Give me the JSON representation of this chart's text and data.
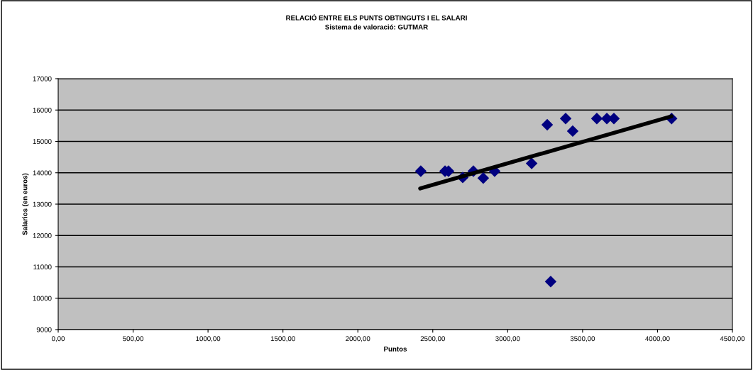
{
  "chart_data": {
    "type": "scatter",
    "title": "RELACIÓ ENTRE ELS PUNTS OBTINGUTS I EL SALARI",
    "subtitle": "Sistema de valoració: GUTMAR",
    "xlabel": "Puntos",
    "ylabel": "Salarios (en euros)",
    "series": [
      {
        "color": "#000080",
        "marker": "diamond",
        "x": [
          2420,
          2582,
          2605,
          2700,
          2771,
          2837,
          2913,
          3160,
          3264,
          3387,
          3434,
          3595,
          3662,
          3709,
          4094,
          3287
        ],
        "values": [
          14050,
          14050,
          14050,
          13850,
          14050,
          13830,
          14050,
          14300,
          15530,
          15730,
          15330,
          15730,
          15730,
          15730,
          15730,
          10530
        ]
      },
      {
        "type": "line",
        "color": "#000000",
        "x": [
          2416,
          4093
        ],
        "values": [
          13500,
          15800
        ]
      }
    ],
    "xlim": [
      0,
      4500
    ],
    "xticks": [
      {
        "value": 0,
        "label": "0,00"
      },
      {
        "value": 500,
        "label": "500,00"
      },
      {
        "value": 1000,
        "label": "1000,00"
      },
      {
        "value": 1500,
        "label": "1500,00"
      },
      {
        "value": 2000,
        "label": "2000,00"
      },
      {
        "value": 2500,
        "label": "2500,00"
      },
      {
        "value": 3000,
        "label": "3000,00"
      },
      {
        "value": 3500,
        "label": "3500,00"
      },
      {
        "value": 4000,
        "label": "4000,00"
      },
      {
        "value": 4500,
        "label": "4500,00"
      }
    ],
    "ylim": [
      9000,
      17000
    ],
    "yticks": [
      9000,
      10000,
      11000,
      12000,
      13000,
      14000,
      15000,
      16000,
      17000
    ],
    "grid": "y",
    "legend": false
  }
}
